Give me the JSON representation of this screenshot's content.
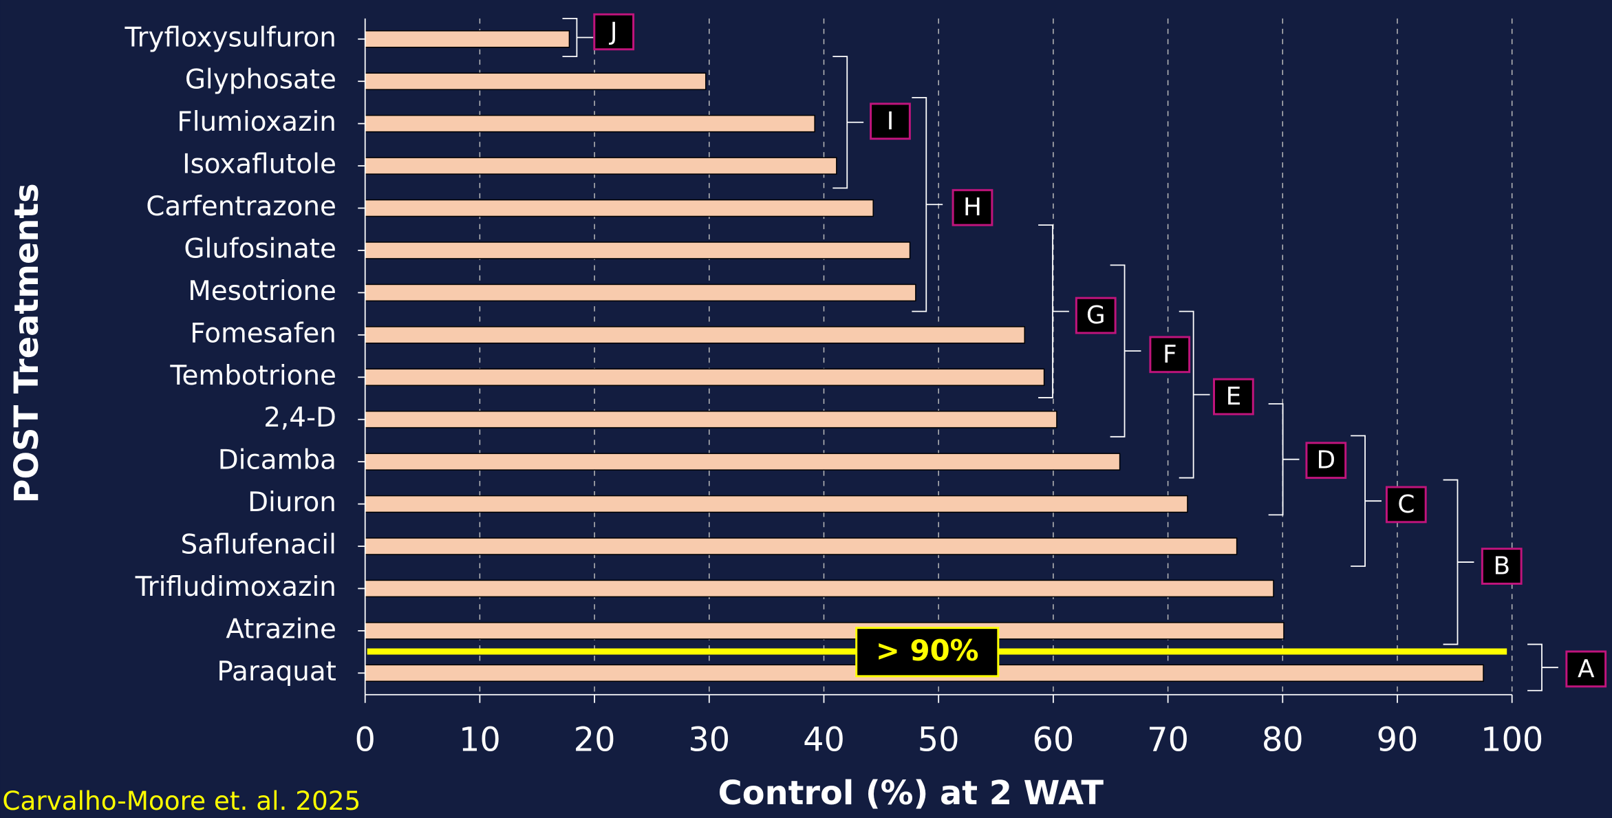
{
  "chart_data": {
    "type": "bar",
    "orientation": "horizontal",
    "x_label": "Control (%) at 2 WAT",
    "y_label": "POST Treatments",
    "source": "Carvalho-Moore et. al. 2025",
    "annotation": "> 90%",
    "categories": [
      "Tryfloxysulfuron",
      "Glyphosate",
      "Flumioxazin",
      "Isoxaflutole",
      "Carfentrazone",
      "Glufosinate",
      "Mesotrione",
      "Fomesafen",
      "Tembotrione",
      "2,4-D",
      "Dicamba",
      "Diuron",
      "Saflufenacil",
      "Trifludimoxazin",
      "Atrazine",
      "Paraquat"
    ],
    "values": [
      17.8,
      29.7,
      39.2,
      41.1,
      44.3,
      47.5,
      48.0,
      57.5,
      59.2,
      60.3,
      65.8,
      71.7,
      76.0,
      79.2,
      80.1,
      97.5
    ],
    "color": "#f8cbad",
    "xlim": [
      0,
      100
    ],
    "xticks": [
      0,
      10,
      20,
      30,
      40,
      50,
      60,
      70,
      80,
      90,
      100
    ],
    "grid": true,
    "groups": [
      "J",
      "I",
      "H",
      "G",
      "F",
      "E",
      "D",
      "C",
      "B",
      "A"
    ]
  }
}
